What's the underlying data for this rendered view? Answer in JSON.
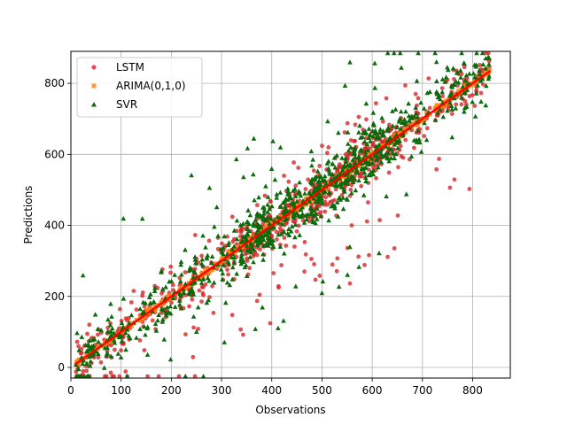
{
  "chart_data": {
    "type": "scatter",
    "title": "",
    "xlabel": "Observations",
    "ylabel": "Predictions",
    "xlim": [
      0,
      875
    ],
    "ylim": [
      -30,
      890
    ],
    "xticks": [
      0,
      100,
      200,
      300,
      400,
      500,
      600,
      700,
      800
    ],
    "yticks": [
      0,
      200,
      400,
      600,
      800
    ],
    "grid": true,
    "legend_position": "upper-left",
    "generated": {
      "n": 900,
      "x_min": 10,
      "x_max": 835,
      "seed": 12345
    },
    "series": [
      {
        "name": "LSTM",
        "marker": "circle",
        "color": "#d62728",
        "description": "scatter around y = x with moderate spread"
      },
      {
        "name": "ARIMA(0,1,0)",
        "marker": "square",
        "color": "#ff7f0e",
        "description": "tight line along y = x"
      },
      {
        "name": "SVR",
        "marker": "triangle",
        "color": "#0b6b0b",
        "description": "scatter around y = x with wider spread"
      }
    ],
    "fit_line": {
      "color": "#ff0000",
      "from": [
        10,
        10
      ],
      "to": [
        835,
        835
      ]
    }
  }
}
